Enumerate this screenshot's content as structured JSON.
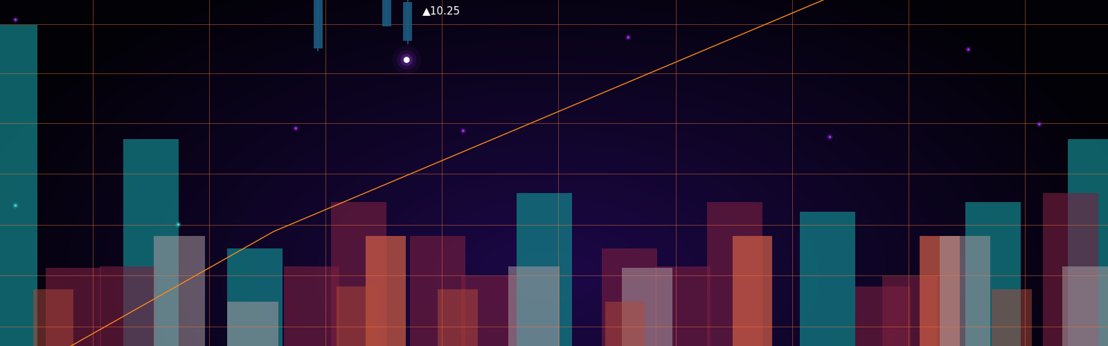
{
  "chart_data": {
    "type": "bar",
    "xlim": [
      0,
      100
    ],
    "ylim": [
      0,
      100
    ],
    "xticks": [
      8.4,
      18.9,
      29.4,
      39.9,
      50.4,
      61.0,
      71.5,
      82.0,
      92.5
    ],
    "yticks": [
      5.7,
      20.4,
      35.1,
      49.8,
      64.5,
      78.8,
      93.1
    ],
    "grid": true,
    "tick_labels": false,
    "annotations": [
      {
        "text": "▲10.25"
      }
    ],
    "series": [
      {
        "type": "bar",
        "color": "#127f86",
        "x": [
          0.9,
          13.6,
          23.0,
          49.1,
          74.7,
          89.6,
          98.9
        ],
        "values": [
          92.9,
          59.8,
          28.2,
          44.3,
          38.8,
          41.6,
          59.8
        ]
      },
      {
        "type": "bar",
        "color": "#7a2040",
        "x": [
          6.6,
          11.5,
          28.1,
          32.4,
          39.5,
          44.1,
          56.8,
          61.6,
          66.3,
          79.7,
          82.1,
          96.6
        ],
        "values": [
          22.7,
          23.1,
          23.1,
          41.6,
          31.8,
          20.2,
          28.2,
          23.1,
          41.6,
          17.3,
          20.2,
          44.3
        ]
      },
      {
        "type": "bar",
        "color": "#c85a45",
        "x": [
          34.8,
          67.9,
          84.8
        ],
        "values": [
          31.8,
          31.8,
          31.8
        ]
      },
      {
        "type": "bar",
        "color": "#a89aa0",
        "x": [
          16.2,
          22.8,
          48.2,
          58.4,
          87.1,
          98.2
        ],
        "values": [
          31.8,
          12.9,
          23.1,
          22.7,
          31.8,
          23.1
        ]
      },
      {
        "type": "bar",
        "color": "#b04a3a",
        "x": [
          4.8,
          32.2,
          41.3,
          56.4,
          91.3
        ],
        "values": [
          16.5,
          17.3,
          16.5,
          12.9,
          16.5
        ]
      },
      {
        "type": "line",
        "color": "#ff8c1a",
        "x": [
          6.4,
          24.7,
          74.3
        ],
        "values": [
          0,
          33.1,
          100
        ]
      },
      {
        "type": "candlestick",
        "color": "#1d5a80",
        "x": [
          28.7,
          34.9,
          36.8
        ],
        "open": [
          86.1,
          92.4,
          88.2
        ],
        "close": [
          100,
          100,
          99.4
        ],
        "low": [
          85.3,
          92.4,
          87.3
        ],
        "high": [
          100,
          100,
          100
        ]
      },
      {
        "type": "scatter",
        "color": "#b030ff",
        "x": [
          56.7,
          87.4,
          26.7,
          41.8,
          74.9,
          93.8,
          1.4
        ],
        "values": [
          89.2,
          85.7,
          62.9,
          62.2,
          60.4,
          64.1,
          94.3
        ]
      },
      {
        "type": "scatter",
        "color": "#40e0e0",
        "x": [
          1.4,
          16.1
        ],
        "values": [
          40.6,
          35.1
        ]
      },
      {
        "type": "scatter",
        "color": "#ffffff",
        "marker": "glow",
        "x": [
          36.7
        ],
        "values": [
          82.7
        ]
      }
    ]
  }
}
